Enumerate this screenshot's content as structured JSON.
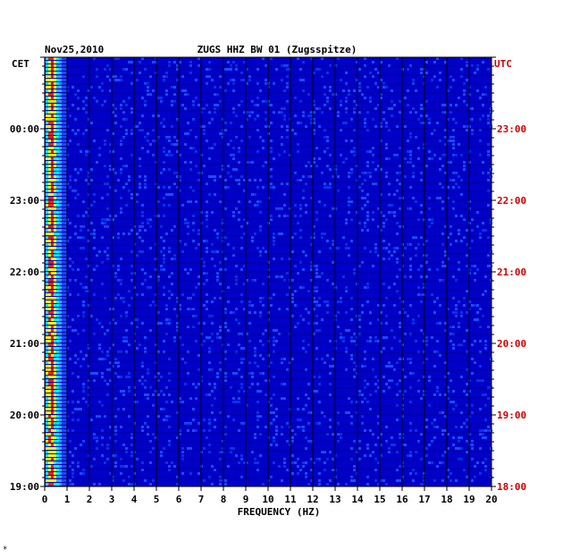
{
  "chart_data": {
    "type": "heatmap",
    "date": "Nov25,2010",
    "title": "ZUGS HHZ BW 01 (Zugsspitze)",
    "left_timezone": "CET",
    "right_timezone": "UTC",
    "xlabel": "FREQUENCY (HZ)",
    "xlim": [
      0,
      20
    ],
    "x_ticks": [
      "0",
      "1",
      "2",
      "3",
      "4",
      "5",
      "6",
      "7",
      "8",
      "9",
      "10",
      "11",
      "12",
      "13",
      "14",
      "15",
      "16",
      "17",
      "18",
      "19",
      "20"
    ],
    "left_time_ticks": [
      "00:00",
      "23:00",
      "22:00",
      "21:00",
      "20:00",
      "19:00"
    ],
    "right_time_ticks": [
      "23:00",
      "22:00",
      "21:00",
      "20:00",
      "19:00",
      "18:00"
    ],
    "grid": true,
    "colors": {
      "background": "#0000c8",
      "low": "#0014d0",
      "mid": "#1a4cff",
      "high_cyan": "#00ffff",
      "high_yellow": "#ffff00",
      "high_red": "#ff2000",
      "grid": "#000000",
      "right_axis": "#cc0000"
    }
  },
  "footer_mark": "*"
}
